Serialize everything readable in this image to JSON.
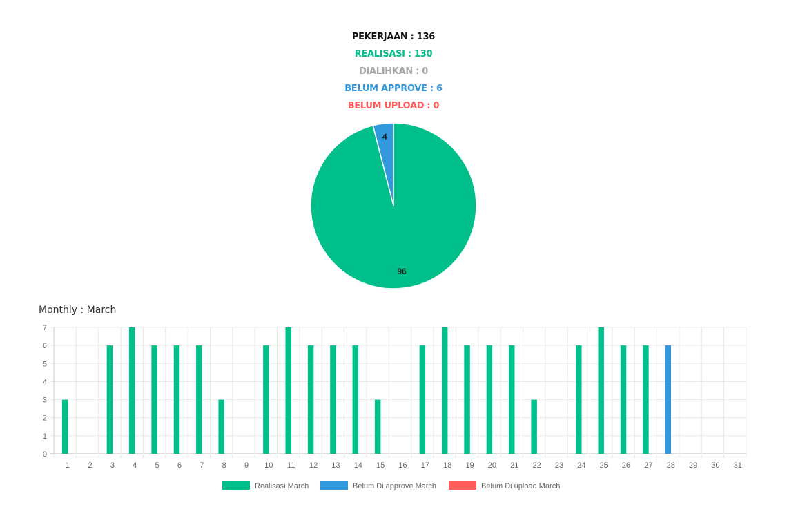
{
  "summary": {
    "pekerjaan": "PEKERJAAN : 136",
    "realisasi": "REALISASI : 130",
    "dialihkan": "DIALIHKAN : 0",
    "belum_approve": "BELUM APPROVE : 6",
    "belum_upload": "BELUM UPLOAD : 0"
  },
  "monthly_title": "Monthly : March",
  "colors": {
    "realisasi": "#00bf8a",
    "belum_approve": "#3399dd",
    "belum_upload": "#ff5c5c",
    "dialihkan": "#a6a6a6",
    "pekerjaan": "#111111"
  },
  "chart_data": [
    {
      "type": "pie",
      "slices": [
        {
          "label": "96",
          "value": 96,
          "color": "#00bf8a"
        },
        {
          "label": "4",
          "value": 4,
          "color": "#3399dd"
        }
      ]
    },
    {
      "type": "bar",
      "categories": [
        "1",
        "2",
        "3",
        "4",
        "5",
        "6",
        "7",
        "8",
        "9",
        "10",
        "11",
        "12",
        "13",
        "14",
        "15",
        "16",
        "17",
        "18",
        "19",
        "20",
        "21",
        "22",
        "23",
        "24",
        "25",
        "26",
        "27",
        "28",
        "29",
        "30",
        "31"
      ],
      "series": [
        {
          "name": "Realisasi March",
          "color": "#00bf8a",
          "values": [
            3,
            0,
            6,
            7,
            6,
            6,
            6,
            3,
            0,
            6,
            7,
            6,
            6,
            6,
            3,
            0,
            6,
            7,
            6,
            6,
            6,
            3,
            0,
            6,
            7,
            6,
            6,
            0,
            0,
            0,
            0
          ]
        },
        {
          "name": "Belum Di approve March",
          "color": "#3399dd",
          "values": [
            0,
            0,
            0,
            0,
            0,
            0,
            0,
            0,
            0,
            0,
            0,
            0,
            0,
            0,
            0,
            0,
            0,
            0,
            0,
            0,
            0,
            0,
            0,
            0,
            0,
            0,
            0,
            6,
            0,
            0,
            0
          ]
        },
        {
          "name": "Belum Di upload March",
          "color": "#ff5c5c",
          "values": [
            0,
            0,
            0,
            0,
            0,
            0,
            0,
            0,
            0,
            0,
            0,
            0,
            0,
            0,
            0,
            0,
            0,
            0,
            0,
            0,
            0,
            0,
            0,
            0,
            0,
            0,
            0,
            0,
            0,
            0,
            0
          ]
        }
      ],
      "ylim": [
        0,
        7
      ],
      "yticks": [
        "0",
        "1",
        "2",
        "3",
        "4",
        "5",
        "6",
        "7"
      ],
      "stacked": true,
      "grid": true,
      "legend_position": "bottom"
    }
  ]
}
